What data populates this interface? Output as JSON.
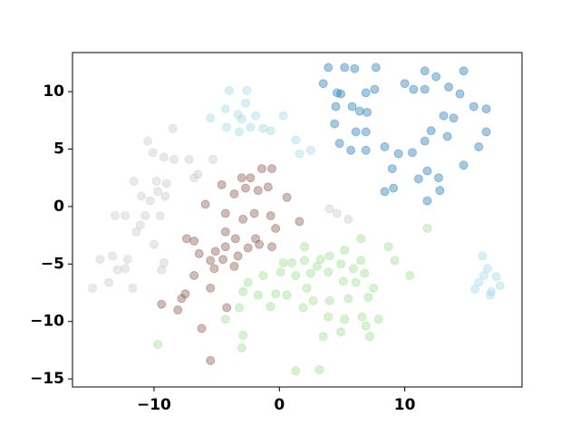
{
  "chart_data": {
    "type": "scatter",
    "xlim": [
      -16.5,
      19.35
    ],
    "ylim": [
      -15.7,
      13.4
    ],
    "xticks": [
      {
        "value": -10,
        "label": "−10"
      },
      0,
      10
    ],
    "yticks": [
      {
        "value": -15,
        "label": "−15"
      },
      {
        "value": -10,
        "label": "−10"
      },
      {
        "value": -5,
        "label": "−5"
      },
      0,
      5,
      10
    ],
    "series": [
      {
        "color": "#1f77b4",
        "x": [
          3.9,
          5.2,
          3.5,
          4.6,
          4.9,
          6.0,
          7.7,
          6.9,
          7.6,
          5.8,
          4.5,
          6.4,
          7.0,
          4.4,
          6.1,
          6.9,
          4.8,
          5.7,
          6.9,
          8.4,
          10.0,
          11.6,
          10.7,
          11.6,
          12.5,
          13.5,
          14.7,
          14.4,
          15.5,
          16.5,
          15.9,
          16.5,
          13.1,
          13.9,
          12.1,
          11.6,
          10.6,
          9.5,
          9.0,
          8.4,
          9.1,
          11.1,
          11.8,
          12.7,
          12.8,
          11.8,
          14.7,
          13.4
        ],
        "y": [
          12.1,
          12.1,
          10.7,
          9.9,
          9.8,
          12.0,
          12.1,
          9.9,
          10.2,
          8.7,
          8.7,
          8.3,
          8.2,
          7.2,
          6.5,
          6.5,
          5.5,
          4.9,
          4.9,
          5.2,
          10.7,
          11.8,
          10.2,
          10.2,
          11.3,
          10.4,
          11.8,
          9.8,
          8.7,
          6.5,
          5.2,
          8.5,
          7.9,
          7.7,
          6.6,
          5.7,
          4.7,
          4.6,
          3.3,
          1.3,
          1.6,
          2.4,
          3.1,
          2.5,
          1.4,
          0.5,
          3.6,
          6.1
        ]
      },
      {
        "color": "#9edae5",
        "x": [
          -4.0,
          -2.6,
          -2.7,
          -4.3,
          -3.3,
          -5.5,
          -3.0,
          -1.9,
          -1.3,
          -4.2,
          -3.2,
          -2.3,
          -0.7,
          0.3,
          1.3,
          1.6,
          2.5,
          16.2,
          16.6,
          16.3,
          17.3,
          17.6,
          15.9,
          15.6,
          16.8,
          16.9
        ],
        "y": [
          10.1,
          10.1,
          9.0,
          8.5,
          8.0,
          7.7,
          7.6,
          7.9,
          6.8,
          6.9,
          6.5,
          6.9,
          6.6,
          7.9,
          5.8,
          4.6,
          4.9,
          -4.3,
          -5.4,
          -6.0,
          -6.1,
          -6.9,
          -6.6,
          -7.2,
          -7.7,
          -7.4
        ]
      },
      {
        "color": "#c7c7c7",
        "x": [
          -10.5,
          -8.5,
          -10.1,
          -9.2,
          -8.4,
          -7.2,
          -11.6,
          -9.8,
          -9.0,
          -6.5,
          -6.8,
          -11.0,
          -9.7,
          -9.1,
          -10.3,
          -13.1,
          -12.3,
          -10.7,
          -9.5,
          -11.1,
          -11.4,
          -10.0,
          -13.3,
          -12.3,
          -12.9,
          -14.3,
          -12.1,
          -9.4,
          -9.2,
          -13.6,
          -14.9,
          -11.7,
          -5.3,
          4.0,
          4.6,
          5.5
        ],
        "y": [
          5.7,
          6.8,
          4.7,
          4.3,
          4.1,
          4.1,
          2.2,
          2.2,
          2.0,
          2.8,
          2.5,
          0.9,
          1.3,
          0.9,
          0.5,
          -0.8,
          -0.8,
          -0.8,
          -0.8,
          -1.6,
          -2.2,
          -3.3,
          -4.3,
          -5.4,
          -5.5,
          -4.6,
          -4.6,
          -5.5,
          -4.9,
          -6.6,
          -7.1,
          -7.1,
          4.1,
          -0.2,
          -0.6,
          -1.1
        ]
      },
      {
        "color": "#8c564b",
        "x": [
          -1.4,
          -0.6,
          -3.0,
          -2.3,
          -4.6,
          -1.7,
          -3.6,
          -2.7,
          -0.9,
          0.6,
          -5.9,
          -4.3,
          -2.9,
          -2.0,
          -0.7,
          1.6,
          -0.3,
          -7.4,
          -6.8,
          -4.3,
          -3.5,
          -4.3,
          -5.1,
          -6.4,
          -5.5,
          -4.5,
          -3.3,
          -2.5,
          -1.6,
          -0.6,
          -1.9,
          -6.8,
          -5.2,
          -3.6,
          -5.5,
          -7.5,
          -7.8,
          -8.1,
          -9.4,
          -6.2,
          -4.2,
          -5.5
        ],
        "y": [
          3.3,
          3.3,
          2.5,
          2.5,
          1.9,
          1.4,
          1.1,
          1.6,
          1.7,
          0.8,
          0.2,
          -0.6,
          -1.1,
          -0.6,
          -0.8,
          -1.3,
          -1.9,
          -2.8,
          -3.0,
          -2.2,
          -2.8,
          -3.5,
          -3.9,
          -4.1,
          -4.7,
          -4.6,
          -4.3,
          -3.6,
          -3.3,
          -3.5,
          -2.8,
          -6.0,
          -5.4,
          -5.2,
          -7.1,
          -7.6,
          -8.0,
          -9.0,
          -8.5,
          -10.6,
          -8.8,
          -13.4
        ]
      },
      {
        "color": "#98df8a",
        "x": [
          11.8,
          8.7,
          6.5,
          5.2,
          4.0,
          2.0,
          3.3,
          3.0,
          2.0,
          1.0,
          0.3,
          3.9,
          4.9,
          5.9,
          6.5,
          6.8,
          5.1,
          6.1,
          7.5,
          9.2,
          10.4,
          2.5,
          1.3,
          0.1,
          -1.3,
          -2.5,
          -2.9,
          -1.7,
          -0.3,
          0.6,
          2.2,
          2.7,
          4.0,
          5.5,
          7.1,
          -0.7,
          1.9,
          3.9,
          5.2,
          6.6,
          7.9,
          6.9,
          4.9,
          3.5,
          7.2,
          -3.2,
          -2.9,
          -3.0,
          -4.3,
          -9.7,
          1.3,
          3.2
        ],
        "y": [
          -1.9,
          -3.5,
          -2.8,
          -3.8,
          -4.3,
          -3.5,
          -4.6,
          -5.2,
          -4.7,
          -4.9,
          -4.9,
          -5.7,
          -5.0,
          -5.4,
          -4.7,
          -5.8,
          -6.5,
          -6.6,
          -7.1,
          -4.7,
          -6.0,
          -5.8,
          -6.0,
          -5.7,
          -6.0,
          -6.6,
          -7.4,
          -7.7,
          -7.6,
          -7.7,
          -7.1,
          -8.2,
          -8.2,
          -8.0,
          -7.9,
          -8.7,
          -8.8,
          -9.6,
          -9.8,
          -9.6,
          -9.8,
          -10.4,
          -10.9,
          -11.3,
          -11.3,
          -8.8,
          -11.2,
          -12.3,
          -9.8,
          -12.0,
          -14.3,
          -14.2
        ]
      }
    ]
  }
}
